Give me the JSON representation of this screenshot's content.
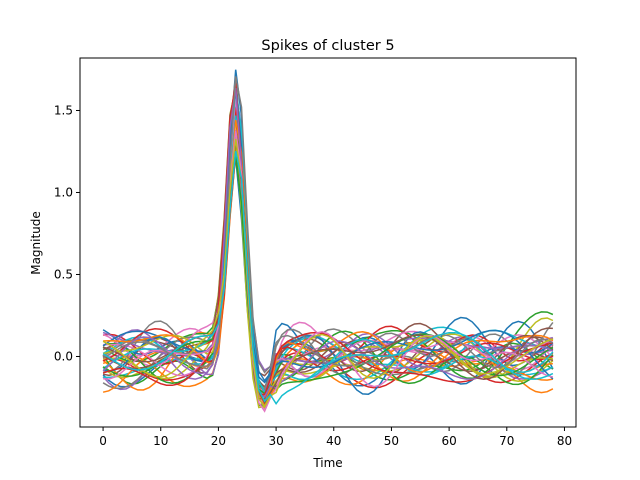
{
  "chart_data": {
    "type": "line",
    "title": "Spikes of cluster 5",
    "xlabel": "Time",
    "ylabel": "Magnitude",
    "xlim": [
      -4,
      82
    ],
    "ylim": [
      -0.43,
      1.82
    ],
    "x_ticks": [
      0,
      10,
      20,
      30,
      40,
      50,
      60,
      70,
      80
    ],
    "y_ticks": [
      0.0,
      0.5,
      1.0,
      1.5
    ],
    "y_tick_labels": [
      "0.0",
      "0.5",
      "1.0",
      "1.5"
    ],
    "x_tick_labels": [
      "0",
      "10",
      "20",
      "30",
      "40",
      "50",
      "60",
      "70",
      "80"
    ],
    "grid": false,
    "legend": "none",
    "series_count": 40,
    "x": [
      0,
      1,
      2,
      3,
      4,
      5,
      6,
      7,
      8,
      9,
      10,
      11,
      12,
      13,
      14,
      15,
      16,
      17,
      18,
      19,
      20,
      21,
      22,
      23,
      24,
      25,
      26,
      27,
      28,
      29,
      30,
      31,
      32,
      33,
      34,
      35,
      36,
      37,
      38,
      39,
      40,
      41,
      42,
      43,
      44,
      45,
      46,
      47,
      48,
      49,
      50,
      51,
      52,
      53,
      54,
      55,
      56,
      57,
      58,
      59,
      60,
      61,
      62,
      63,
      64,
      65,
      66,
      67,
      68,
      69,
      70,
      71,
      72,
      73,
      74,
      75,
      76,
      77,
      78
    ],
    "peak": {
      "x": 23,
      "y_range": [
        1.2,
        1.74
      ]
    },
    "trough": {
      "x": 27,
      "y_range": [
        -0.33,
        -0.15
      ]
    },
    "baseline_range": [
      -0.25,
      0.34
    ],
    "colors": [
      "#1f77b4",
      "#ff7f0e",
      "#2ca02c",
      "#d62728",
      "#9467bd",
      "#8c564b",
      "#e377c2",
      "#7f7f7f",
      "#bcbd22",
      "#17becf"
    ]
  }
}
